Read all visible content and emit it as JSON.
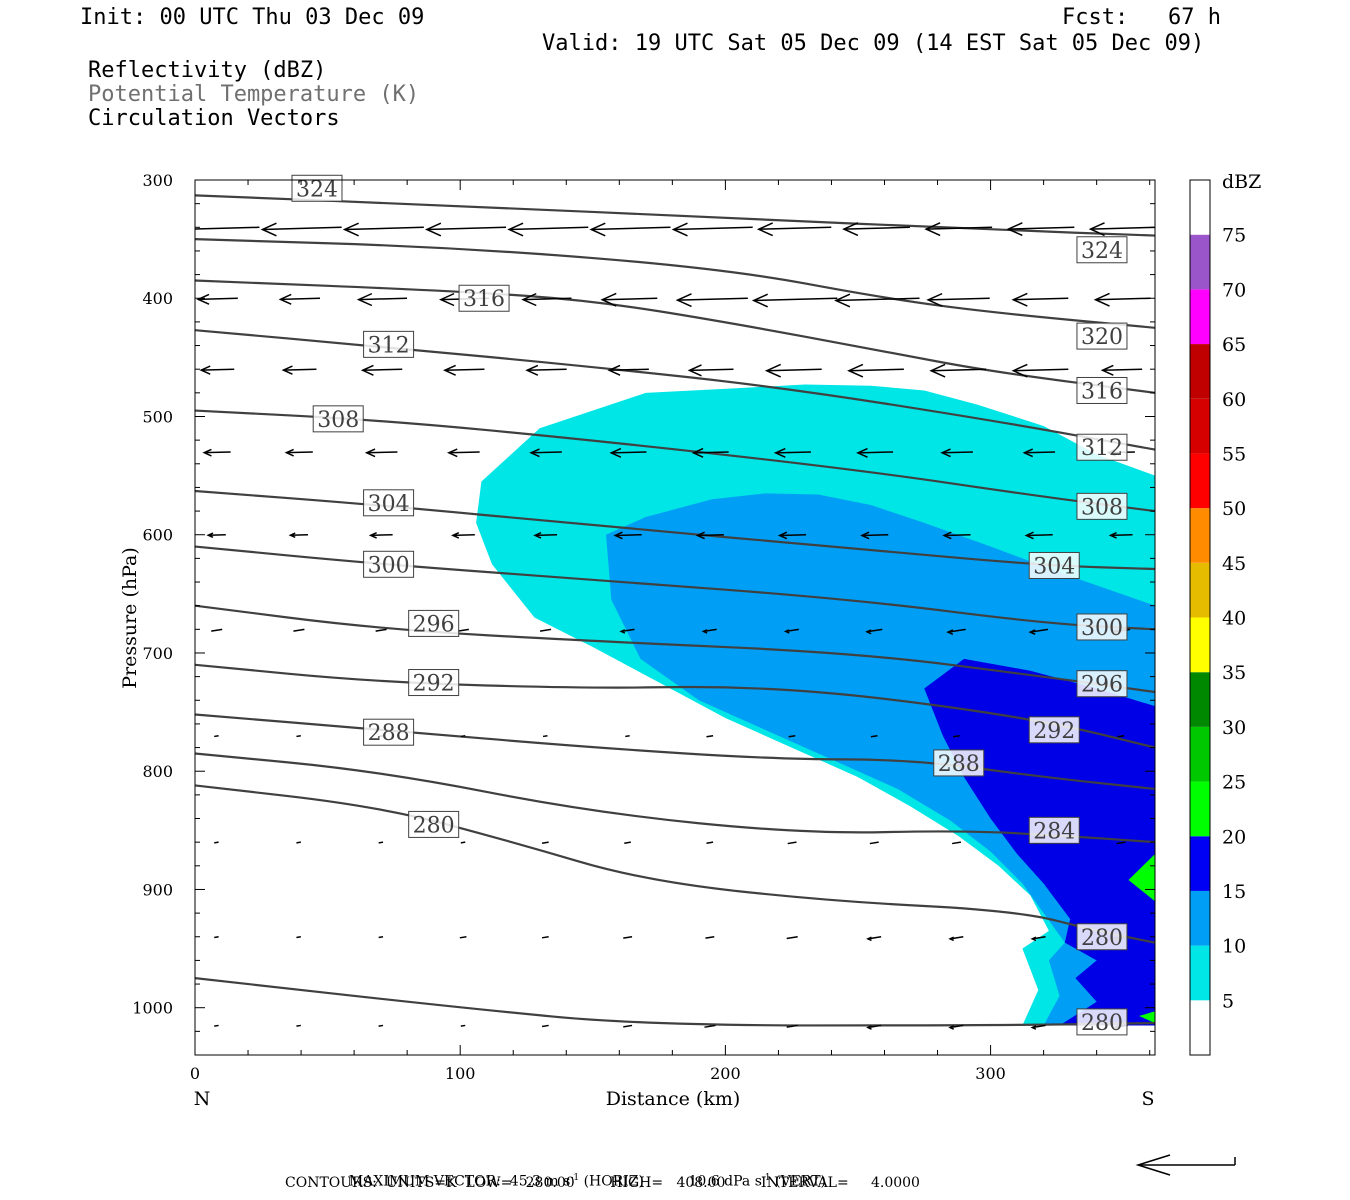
{
  "header": {
    "init": "Init: 00 UTC Thu 03 Dec 09",
    "fcst": "Fcst:   67 h",
    "valid": "Valid: 19 UTC Sat 05 Dec 09 (14 EST Sat 05 Dec 09)"
  },
  "fields": [
    {
      "label": "Reflectivity (dBZ)",
      "color": "#000000"
    },
    {
      "label": "Potential Temperature (K)",
      "color": "#707070"
    },
    {
      "label": "Circulation Vectors",
      "color": "#000000"
    }
  ],
  "footer": {
    "max_vector_label": "MAXIMUM VECTOR:",
    "horiz": "45.3 m s",
    "horiz_unit": "(HORIZ)",
    "vert": "10.6 dPa s",
    "vert_unit": "(VERT)",
    "exp": "-1",
    "contours": "CONTOURS:  UNITS=K  LOW=   280.00        HIGH=   408.00        INTERVAL=     4.0000"
  },
  "chart_data": {
    "type": "contour",
    "xlabel": "Distance (km)",
    "ylabel": "Pressure (hPa)",
    "xlim": [
      0,
      362
    ],
    "ylim": [
      300,
      1040
    ],
    "x_ticks": [
      0,
      100,
      200,
      300
    ],
    "y_ticks": [
      300,
      400,
      500,
      600,
      700,
      800,
      900,
      1000
    ],
    "x_end_labels": {
      "left": "N",
      "right": "S"
    },
    "colorbar": {
      "unit": "dBZ",
      "levels": [
        5,
        10,
        15,
        20,
        25,
        30,
        35,
        40,
        45,
        50,
        55,
        60,
        65,
        70,
        75
      ],
      "colors": [
        "#ffffff",
        "#00e5e5",
        "#009ff5",
        "#0000f5",
        "#00ff00",
        "#00c800",
        "#008800",
        "#ffff00",
        "#e5bc00",
        "#ff8c00",
        "#ff0000",
        "#d60000",
        "#c00000",
        "#ff00ff",
        "#9955c9",
        "#ffffff"
      ]
    },
    "reflectivity_regions": [
      {
        "dbz": 5,
        "color": "#00e5e5",
        "points": [
          [
            108,
            555
          ],
          [
            130,
            510
          ],
          [
            170,
            480
          ],
          [
            205,
            476
          ],
          [
            230,
            473
          ],
          [
            255,
            474
          ],
          [
            275,
            478
          ],
          [
            295,
            490
          ],
          [
            320,
            508
          ],
          [
            340,
            532
          ],
          [
            362,
            550
          ],
          [
            362,
            1015
          ],
          [
            312,
            1015
          ],
          [
            318,
            985
          ],
          [
            312,
            950
          ],
          [
            322,
            935
          ],
          [
            315,
            905
          ],
          [
            303,
            880
          ],
          [
            288,
            855
          ],
          [
            270,
            830
          ],
          [
            250,
            805
          ],
          [
            225,
            780
          ],
          [
            200,
            755
          ],
          [
            175,
            725
          ],
          [
            150,
            695
          ],
          [
            128,
            670
          ],
          [
            112,
            625
          ],
          [
            106,
            590
          ]
        ]
      },
      {
        "dbz": 10,
        "color": "#009ff5",
        "points": [
          [
            155,
            600
          ],
          [
            170,
            585
          ],
          [
            195,
            570
          ],
          [
            215,
            565
          ],
          [
            235,
            566
          ],
          [
            255,
            575
          ],
          [
            275,
            590
          ],
          [
            300,
            610
          ],
          [
            330,
            635
          ],
          [
            362,
            660
          ],
          [
            362,
            1015
          ],
          [
            320,
            1015
          ],
          [
            326,
            990
          ],
          [
            322,
            960
          ],
          [
            328,
            945
          ],
          [
            320,
            920
          ],
          [
            312,
            895
          ],
          [
            300,
            868
          ],
          [
            285,
            842
          ],
          [
            265,
            815
          ],
          [
            240,
            790
          ],
          [
            215,
            765
          ],
          [
            190,
            740
          ],
          [
            168,
            705
          ],
          [
            157,
            655
          ]
        ]
      },
      {
        "dbz": 15,
        "color": "#0000e6",
        "points": [
          [
            275,
            730
          ],
          [
            290,
            705
          ],
          [
            315,
            715
          ],
          [
            340,
            730
          ],
          [
            362,
            745
          ],
          [
            362,
            1015
          ],
          [
            326,
            1015
          ],
          [
            340,
            995
          ],
          [
            332,
            975
          ],
          [
            340,
            960
          ],
          [
            328,
            945
          ],
          [
            330,
            925
          ],
          [
            320,
            895
          ],
          [
            310,
            870
          ],
          [
            300,
            840
          ],
          [
            290,
            805
          ],
          [
            282,
            770
          ]
        ]
      },
      {
        "dbz": 20,
        "color": "#00ff00",
        "points": [
          [
            352,
            892
          ],
          [
            362,
            870
          ],
          [
            362,
            910
          ]
        ]
      },
      {
        "dbz": 20,
        "color": "#00ff00",
        "points": [
          [
            356,
            1007
          ],
          [
            362,
            1003
          ],
          [
            362,
            1013
          ]
        ]
      }
    ],
    "theta_contours": [
      {
        "value": 324,
        "labels": [
          [
            46,
            307
          ],
          [
            342,
            359
          ]
        ],
        "points": [
          [
            0,
            313
          ],
          [
            100,
            322
          ],
          [
            200,
            332
          ],
          [
            300,
            342
          ],
          [
            362,
            347
          ]
        ]
      },
      {
        "value": 320,
        "points": [
          [
            0,
            350
          ],
          [
            100,
            357
          ],
          [
            200,
            375
          ],
          [
            260,
            400
          ],
          [
            300,
            412
          ],
          [
            362,
            425
          ]
        ],
        "labels": [
          [
            342,
            432
          ]
        ]
      },
      {
        "value": 316,
        "points": [
          [
            0,
            385
          ],
          [
            100,
            394
          ],
          [
            150,
            402
          ],
          [
            200,
            420
          ],
          [
            260,
            445
          ],
          [
            300,
            462
          ],
          [
            362,
            480
          ]
        ],
        "labels": [
          [
            109,
            400
          ],
          [
            342,
            478
          ]
        ]
      },
      {
        "value": 312,
        "points": [
          [
            0,
            427
          ],
          [
            70,
            441
          ],
          [
            150,
            458
          ],
          [
            220,
            475
          ],
          [
            300,
            503
          ],
          [
            362,
            528
          ]
        ],
        "labels": [
          [
            73,
            439
          ],
          [
            342,
            526
          ]
        ]
      },
      {
        "value": 308,
        "points": [
          [
            0,
            495
          ],
          [
            70,
            503
          ],
          [
            150,
            520
          ],
          [
            250,
            545
          ],
          [
            320,
            568
          ],
          [
            362,
            580
          ]
        ],
        "labels": [
          [
            54,
            502
          ],
          [
            342,
            576
          ]
        ]
      },
      {
        "value": 304,
        "points": [
          [
            0,
            563
          ],
          [
            70,
            575
          ],
          [
            150,
            592
          ],
          [
            250,
            612
          ],
          [
            320,
            626
          ],
          [
            362,
            629
          ]
        ],
        "labels": [
          [
            73,
            573
          ],
          [
            324,
            626
          ]
        ]
      },
      {
        "value": 300,
        "points": [
          [
            0,
            610
          ],
          [
            70,
            625
          ],
          [
            150,
            638
          ],
          [
            250,
            655
          ],
          [
            320,
            675
          ],
          [
            362,
            680
          ]
        ],
        "labels": [
          [
            73,
            625
          ],
          [
            342,
            678
          ]
        ]
      },
      {
        "value": 296,
        "points": [
          [
            0,
            660
          ],
          [
            70,
            680
          ],
          [
            150,
            690
          ],
          [
            250,
            700
          ],
          [
            320,
            720
          ],
          [
            362,
            733
          ]
        ],
        "labels": [
          [
            90,
            675
          ],
          [
            342,
            726
          ]
        ]
      },
      {
        "value": 292,
        "points": [
          [
            0,
            710
          ],
          [
            70,
            725
          ],
          [
            150,
            730
          ],
          [
            200,
            728
          ],
          [
            250,
            735
          ],
          [
            320,
            757
          ],
          [
            362,
            780
          ]
        ],
        "labels": [
          [
            90,
            725
          ],
          [
            324,
            765
          ]
        ]
      },
      {
        "value": 288,
        "points": [
          [
            0,
            752
          ],
          [
            70,
            765
          ],
          [
            150,
            780
          ],
          [
            220,
            790
          ],
          [
            270,
            790
          ],
          [
            320,
            805
          ],
          [
            362,
            815
          ]
        ],
        "labels": [
          [
            73,
            767
          ],
          [
            288,
            793
          ]
        ]
      },
      {
        "value": 284,
        "points": [
          [
            0,
            785
          ],
          [
            70,
            800
          ],
          [
            150,
            835
          ],
          [
            230,
            853
          ],
          [
            290,
            850
          ],
          [
            330,
            855
          ],
          [
            362,
            860
          ]
        ],
        "labels": [
          [
            324,
            850
          ]
        ]
      },
      {
        "value": 280,
        "points": [
          [
            0,
            812
          ],
          [
            70,
            830
          ],
          [
            120,
            860
          ],
          [
            170,
            893
          ],
          [
            240,
            910
          ],
          [
            310,
            918
          ],
          [
            340,
            935
          ],
          [
            362,
            945
          ]
        ],
        "labels": [
          [
            90,
            845
          ],
          [
            342,
            940
          ]
        ]
      },
      {
        "value": 280,
        "points": [
          [
            0,
            975
          ],
          [
            100,
            1000
          ],
          [
            170,
            1015
          ],
          [
            300,
            1015
          ],
          [
            362,
            1013
          ]
        ],
        "labels": [
          [
            342,
            1012
          ]
        ]
      }
    ],
    "vectors_by_level": [
      {
        "p": 340,
        "len": [
          36,
          36,
          36,
          36,
          36,
          36,
          36,
          33,
          30,
          30,
          30,
          30
        ]
      },
      {
        "p": 400,
        "len": [
          18,
          18,
          22,
          22,
          22,
          25,
          32,
          38,
          38,
          28,
          25,
          25
        ]
      },
      {
        "p": 460,
        "len": [
          15,
          15,
          18,
          18,
          18,
          18,
          20,
          25,
          25,
          25,
          25,
          18
        ]
      },
      {
        "p": 530,
        "len": [
          12,
          12,
          14,
          14,
          14,
          16,
          16,
          16,
          16,
          14,
          14,
          12
        ]
      },
      {
        "p": 600,
        "len": [
          8,
          8,
          10,
          10,
          10,
          12,
          12,
          12,
          12,
          12,
          12,
          10
        ]
      },
      {
        "p": 680,
        "len": [
          5,
          5,
          5,
          5,
          5,
          6,
          6,
          6,
          7,
          8,
          8,
          8
        ]
      },
      {
        "p": 770,
        "len": [
          2,
          2,
          2,
          2,
          2,
          2,
          3,
          3,
          3,
          3,
          3,
          3
        ]
      },
      {
        "p": 860,
        "len": [
          2,
          2,
          2,
          2,
          3,
          3,
          3,
          4,
          4,
          4,
          4,
          4
        ]
      },
      {
        "p": 940,
        "len": [
          2,
          2,
          2,
          3,
          3,
          4,
          4,
          5,
          6,
          6,
          6,
          6
        ]
      },
      {
        "p": 1015,
        "len": [
          2,
          2,
          2,
          2,
          3,
          4,
          5,
          5,
          6,
          6,
          6,
          6
        ]
      }
    ]
  }
}
